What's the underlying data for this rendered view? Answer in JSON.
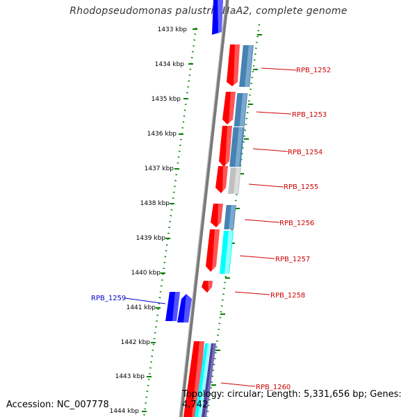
{
  "title": "Rhodopseudomonas palustris HaA2, complete genome",
  "footer": {
    "accession": "Accession: NC_007778",
    "summary": "Topology: circular; Length: 5,331,656 bp; Genes: 4,742"
  },
  "ruler_labels": [
    "1433 kbp",
    "1434 kbp",
    "1435 kbp",
    "1436 kbp",
    "1437 kbp",
    "1438 kbp",
    "1439 kbp",
    "1440 kbp",
    "1441 kbp",
    "1442 kbp",
    "1443 kbp",
    "1444 kbp"
  ],
  "gene_labels": {
    "rpb_1252": "RPB_1252",
    "rpb_1253": "RPB_1253",
    "rpb_1254": "RPB_1254",
    "rpb_1255": "RPB_1255",
    "rpb_1256": "RPB_1256",
    "rpb_1257": "RPB_1257",
    "rpb_1258": "RPB_1258",
    "rpb_1259": "RPB_1259",
    "rpb_1260": "RPB_1260"
  },
  "colors": {
    "strand_forward": "#ff0000",
    "strand_reverse": "#0000ff",
    "track_steelblue": "#4682b4",
    "track_cyan": "#00ffff",
    "track_gray": "#c0c0c0",
    "track_purple": "#4b3e9b",
    "ruler_green": "#008000",
    "backbone": "#808080"
  }
}
